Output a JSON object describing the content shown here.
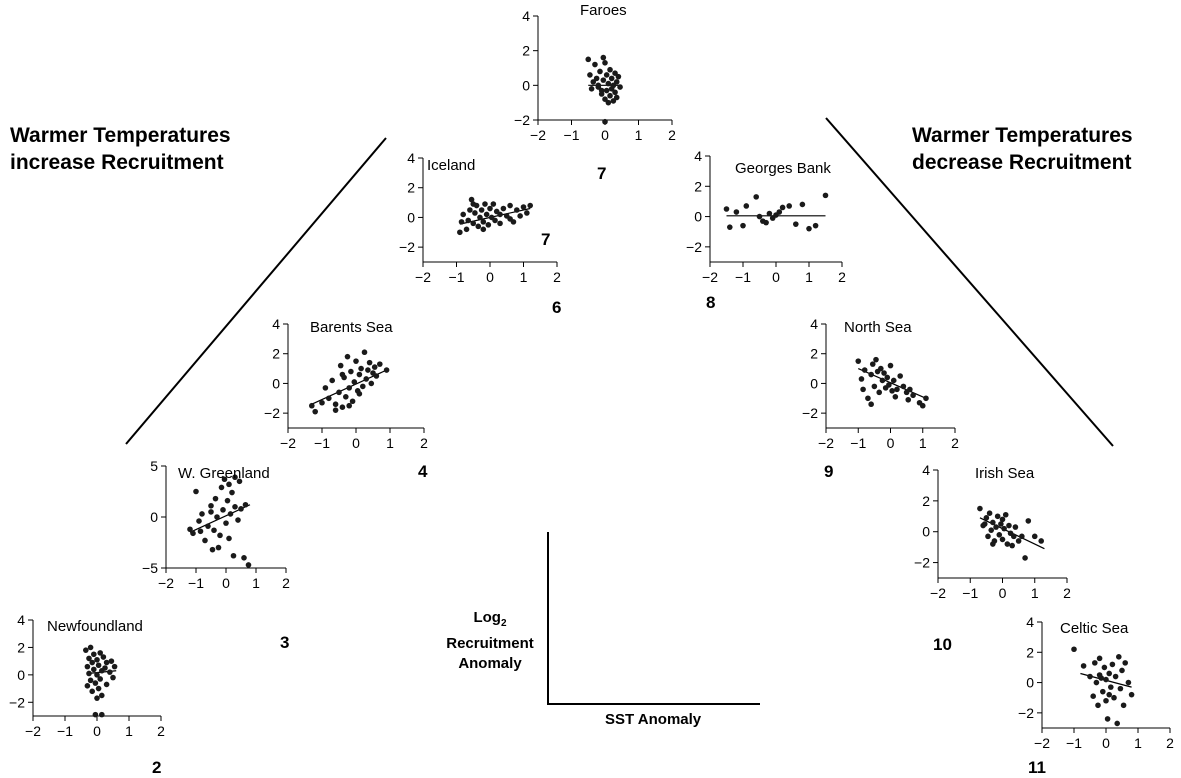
{
  "headings": {
    "left": [
      "Warmer Temperatures",
      "increase Recruitment"
    ],
    "right": [
      "Warmer Temperatures",
      "decrease Recruitment"
    ]
  },
  "legend": {
    "ylabel_prefix": "Log",
    "ylabel_sub": "2",
    "ylabel_line2": "Recruitment",
    "ylabel_line3": "Anomaly",
    "xlabel": "SST Anomaly"
  },
  "chart_data": [
    {
      "type": "scatter",
      "title": "Faroes",
      "rank": "7",
      "xlim": [
        -2,
        2
      ],
      "ylim": [
        -2,
        4
      ],
      "xticks": [
        -2,
        -1,
        0,
        1,
        2
      ],
      "yticks": [
        -2,
        0,
        2,
        4
      ],
      "trend": [
        [
          -0.5,
          0.0
        ],
        [
          0.5,
          0.0
        ]
      ],
      "points": [
        [
          -0.5,
          1.5
        ],
        [
          -0.45,
          0.6
        ],
        [
          -0.35,
          0.2
        ],
        [
          -0.3,
          1.2
        ],
        [
          -0.25,
          0.4
        ],
        [
          -0.2,
          -0.1
        ],
        [
          -0.15,
          0.8
        ],
        [
          -0.1,
          -0.5
        ],
        [
          -0.05,
          1.6
        ],
        [
          -0.05,
          0.3
        ],
        [
          0.0,
          1.3
        ],
        [
          0.0,
          -0.8
        ],
        [
          0.05,
          0.6
        ],
        [
          0.05,
          -0.3
        ],
        [
          0.1,
          0.1
        ],
        [
          0.1,
          -1.0
        ],
        [
          0.15,
          0.9
        ],
        [
          0.15,
          -0.6
        ],
        [
          0.2,
          0.4
        ],
        [
          0.2,
          -0.2
        ],
        [
          0.25,
          -0.9
        ],
        [
          0.3,
          0.7
        ],
        [
          0.3,
          -0.4
        ],
        [
          0.35,
          0.2
        ],
        [
          0.4,
          0.5
        ],
        [
          0.45,
          -0.1
        ],
        [
          -0.4,
          -0.2
        ],
        [
          -0.2,
          0.0
        ],
        [
          0.0,
          -2.1
        ],
        [
          0.25,
          0.0
        ],
        [
          -0.1,
          -0.3
        ],
        [
          0.35,
          -0.7
        ]
      ]
    },
    {
      "type": "scatter",
      "title": "Iceland",
      "rank": "6",
      "extra_label": "7",
      "xlim": [
        -2,
        2
      ],
      "ylim": [
        -3,
        4
      ],
      "xticks": [
        -2,
        -1,
        0,
        1,
        2
      ],
      "yticks": [
        -2,
        0,
        2,
        4
      ],
      "trend": [
        [
          -0.9,
          -0.45
        ],
        [
          1.2,
          0.6
        ]
      ],
      "points": [
        [
          -0.9,
          -1.0
        ],
        [
          -0.85,
          -0.3
        ],
        [
          -0.8,
          0.2
        ],
        [
          -0.7,
          -0.8
        ],
        [
          -0.65,
          -0.2
        ],
        [
          -0.6,
          0.5
        ],
        [
          -0.55,
          1.2
        ],
        [
          -0.5,
          -0.4
        ],
        [
          -0.45,
          0.3
        ],
        [
          -0.4,
          0.8
        ],
        [
          -0.35,
          -0.6
        ],
        [
          -0.3,
          0.0
        ],
        [
          -0.25,
          0.5
        ],
        [
          -0.2,
          -0.3
        ],
        [
          -0.15,
          0.9
        ],
        [
          -0.1,
          0.2
        ],
        [
          -0.05,
          -0.5
        ],
        [
          0.0,
          0.6
        ],
        [
          0.05,
          0.0
        ],
        [
          0.1,
          0.9
        ],
        [
          0.15,
          -0.2
        ],
        [
          0.2,
          0.4
        ],
        [
          0.3,
          -0.4
        ],
        [
          0.4,
          0.6
        ],
        [
          0.5,
          0.1
        ],
        [
          0.6,
          0.8
        ],
        [
          0.7,
          -0.3
        ],
        [
          0.8,
          0.5
        ],
        [
          0.9,
          0.1
        ],
        [
          1.0,
          0.7
        ],
        [
          1.1,
          0.3
        ],
        [
          1.2,
          0.8
        ],
        [
          -0.5,
          0.9
        ],
        [
          -0.2,
          -0.8
        ],
        [
          0.3,
          0.2
        ],
        [
          0.6,
          -0.1
        ]
      ]
    },
    {
      "type": "scatter",
      "title": "Georges Bank",
      "rank": "8",
      "xlim": [
        -2,
        2
      ],
      "ylim": [
        -3,
        4
      ],
      "xticks": [
        -2,
        -1,
        0,
        1,
        2
      ],
      "yticks": [
        -2,
        0,
        2,
        4
      ],
      "trend": [
        [
          -1.5,
          0.05
        ],
        [
          1.5,
          0.05
        ]
      ],
      "points": [
        [
          -1.5,
          0.5
        ],
        [
          -1.4,
          -0.7
        ],
        [
          -1.2,
          0.3
        ],
        [
          -1.0,
          -0.6
        ],
        [
          -0.9,
          0.7
        ],
        [
          -0.6,
          1.3
        ],
        [
          -0.5,
          0.0
        ],
        [
          -0.4,
          -0.3
        ],
        [
          -0.2,
          0.2
        ],
        [
          -0.1,
          -0.1
        ],
        [
          0.1,
          0.3
        ],
        [
          0.2,
          0.6
        ],
        [
          0.4,
          0.7
        ],
        [
          0.6,
          -0.5
        ],
        [
          0.8,
          0.8
        ],
        [
          1.0,
          -0.8
        ],
        [
          1.2,
          -0.6
        ],
        [
          1.5,
          1.4
        ],
        [
          -0.3,
          -0.4
        ],
        [
          0.0,
          0.1
        ]
      ]
    },
    {
      "type": "scatter",
      "title": "Barents Sea",
      "rank": "4",
      "xlim": [
        -2,
        2
      ],
      "ylim": [
        -3,
        4
      ],
      "xticks": [
        -2,
        -1,
        0,
        1,
        2
      ],
      "yticks": [
        -2,
        0,
        2,
        4
      ],
      "trend": [
        [
          -1.3,
          -1.4
        ],
        [
          0.9,
          0.9
        ]
      ],
      "points": [
        [
          -1.3,
          -1.5
        ],
        [
          -1.2,
          -1.9
        ],
        [
          -1.0,
          -1.3
        ],
        [
          -0.9,
          -0.3
        ],
        [
          -0.8,
          -1.0
        ],
        [
          -0.7,
          0.2
        ],
        [
          -0.6,
          -1.4
        ],
        [
          -0.5,
          -0.6
        ],
        [
          -0.45,
          1.2
        ],
        [
          -0.4,
          -1.6
        ],
        [
          -0.35,
          0.4
        ],
        [
          -0.3,
          -0.9
        ],
        [
          -0.25,
          1.8
        ],
        [
          -0.2,
          -0.3
        ],
        [
          -0.15,
          0.8
        ],
        [
          -0.1,
          -1.2
        ],
        [
          -0.05,
          0.1
        ],
        [
          0.0,
          1.5
        ],
        [
          0.05,
          -0.5
        ],
        [
          0.1,
          0.6
        ],
        [
          0.15,
          1.0
        ],
        [
          0.2,
          -0.2
        ],
        [
          0.25,
          2.1
        ],
        [
          0.3,
          0.3
        ],
        [
          0.35,
          0.9
        ],
        [
          0.4,
          1.4
        ],
        [
          0.45,
          0.0
        ],
        [
          0.5,
          0.7
        ],
        [
          0.55,
          1.1
        ],
        [
          0.6,
          0.5
        ],
        [
          0.7,
          1.3
        ],
        [
          0.9,
          0.9
        ],
        [
          -0.6,
          -1.8
        ],
        [
          -0.2,
          -1.5
        ],
        [
          0.1,
          -0.7
        ],
        [
          -0.4,
          0.6
        ]
      ]
    },
    {
      "type": "scatter",
      "title": "North Sea",
      "rank": "9",
      "xlim": [
        -2,
        2
      ],
      "ylim": [
        -3,
        4
      ],
      "xticks": [
        -2,
        -1,
        0,
        1,
        2
      ],
      "yticks": [
        -2,
        0,
        2,
        4
      ],
      "trend": [
        [
          -1.0,
          1.0
        ],
        [
          1.1,
          -1.0
        ]
      ],
      "points": [
        [
          -1.0,
          1.5
        ],
        [
          -0.9,
          0.3
        ],
        [
          -0.85,
          -0.4
        ],
        [
          -0.8,
          0.9
        ],
        [
          -0.7,
          -1.0
        ],
        [
          -0.6,
          0.6
        ],
        [
          -0.55,
          1.3
        ],
        [
          -0.5,
          -0.2
        ],
        [
          -0.45,
          1.6
        ],
        [
          -0.4,
          0.8
        ],
        [
          -0.35,
          -0.6
        ],
        [
          -0.3,
          1.0
        ],
        [
          -0.25,
          0.2
        ],
        [
          -0.2,
          0.7
        ],
        [
          -0.15,
          -0.3
        ],
        [
          -0.1,
          0.4
        ],
        [
          -0.05,
          -0.1
        ],
        [
          0.0,
          1.2
        ],
        [
          0.05,
          -0.5
        ],
        [
          0.1,
          0.2
        ],
        [
          0.2,
          -0.4
        ],
        [
          0.3,
          0.5
        ],
        [
          0.4,
          -0.2
        ],
        [
          0.5,
          -0.6
        ],
        [
          0.55,
          -1.1
        ],
        [
          0.6,
          -0.4
        ],
        [
          0.7,
          -0.8
        ],
        [
          0.9,
          -1.3
        ],
        [
          1.0,
          -1.5
        ],
        [
          1.1,
          -1.0
        ],
        [
          -0.6,
          -1.4
        ],
        [
          0.15,
          -0.9
        ]
      ]
    },
    {
      "type": "scatter",
      "title": "W. Greenland",
      "rank": "3",
      "xlim": [
        -2,
        2
      ],
      "ylim": [
        -5,
        5
      ],
      "xticks": [
        -2,
        -1,
        0,
        1,
        2
      ],
      "yticks": [
        -5,
        0,
        5
      ],
      "trend": [
        [
          -1.2,
          -1.5
        ],
        [
          0.8,
          1.2
        ]
      ],
      "points": [
        [
          -1.2,
          -1.2
        ],
        [
          -1.1,
          -1.6
        ],
        [
          -1.0,
          2.5
        ],
        [
          -0.9,
          -0.4
        ],
        [
          -0.85,
          -1.4
        ],
        [
          -0.8,
          0.3
        ],
        [
          -0.7,
          -2.3
        ],
        [
          -0.6,
          -0.9
        ],
        [
          -0.5,
          0.5
        ],
        [
          -0.45,
          -3.2
        ],
        [
          -0.4,
          -1.3
        ],
        [
          -0.35,
          1.8
        ],
        [
          -0.3,
          0.0
        ],
        [
          -0.2,
          -1.8
        ],
        [
          -0.15,
          2.9
        ],
        [
          -0.1,
          0.7
        ],
        [
          -0.05,
          3.7
        ],
        [
          0.0,
          -0.6
        ],
        [
          0.05,
          1.6
        ],
        [
          0.1,
          3.2
        ],
        [
          0.15,
          0.3
        ],
        [
          0.2,
          2.4
        ],
        [
          0.25,
          -3.8
        ],
        [
          0.3,
          1.0
        ],
        [
          0.4,
          -0.3
        ],
        [
          0.45,
          3.5
        ],
        [
          0.5,
          0.8
        ],
        [
          0.6,
          -4.0
        ],
        [
          0.65,
          1.2
        ],
        [
          0.75,
          -4.7
        ],
        [
          -0.25,
          -3.0
        ],
        [
          0.1,
          -2.1
        ],
        [
          0.3,
          3.9
        ],
        [
          -0.5,
          1.1
        ]
      ]
    },
    {
      "type": "scatter",
      "title": "Irish Sea",
      "rank": "10",
      "xlim": [
        -2,
        2
      ],
      "ylim": [
        -3,
        4
      ],
      "xticks": [
        -2,
        -1,
        0,
        1,
        2
      ],
      "yticks": [
        -2,
        0,
        2,
        4
      ],
      "trend": [
        [
          -0.7,
          0.9
        ],
        [
          1.3,
          -1.1
        ]
      ],
      "points": [
        [
          -0.7,
          1.5
        ],
        [
          -0.6,
          0.4
        ],
        [
          -0.5,
          0.9
        ],
        [
          -0.45,
          -0.3
        ],
        [
          -0.4,
          1.2
        ],
        [
          -0.35,
          0.1
        ],
        [
          -0.3,
          0.6
        ],
        [
          -0.25,
          -0.6
        ],
        [
          -0.2,
          0.3
        ],
        [
          -0.15,
          1.0
        ],
        [
          -0.1,
          -0.2
        ],
        [
          -0.05,
          0.5
        ],
        [
          0.0,
          -0.5
        ],
        [
          0.05,
          0.2
        ],
        [
          0.1,
          1.1
        ],
        [
          0.15,
          -0.8
        ],
        [
          0.2,
          0.4
        ],
        [
          0.25,
          -0.1
        ],
        [
          0.3,
          -0.9
        ],
        [
          0.4,
          0.3
        ],
        [
          0.5,
          -0.6
        ],
        [
          0.6,
          -0.3
        ],
        [
          0.7,
          -1.7
        ],
        [
          0.8,
          0.7
        ],
        [
          1.0,
          -0.3
        ],
        [
          1.2,
          -0.6
        ],
        [
          -0.3,
          -0.8
        ],
        [
          0.35,
          -0.3
        ],
        [
          0.0,
          0.8
        ],
        [
          -0.55,
          0.5
        ]
      ]
    },
    {
      "type": "scatter",
      "title": "Newfoundland",
      "rank": "2",
      "xlim": [
        -2,
        2
      ],
      "ylim": [
        -3,
        4
      ],
      "xticks": [
        -2,
        -1,
        0,
        1,
        2
      ],
      "yticks": [
        -2,
        0,
        2,
        4
      ],
      "trend": [
        [
          -0.3,
          0.1
        ],
        [
          0.6,
          0.3
        ]
      ],
      "points": [
        [
          -0.35,
          1.8
        ],
        [
          -0.3,
          0.6
        ],
        [
          -0.3,
          -0.8
        ],
        [
          -0.25,
          1.2
        ],
        [
          -0.25,
          0.1
        ],
        [
          -0.2,
          -0.4
        ],
        [
          -0.2,
          2.0
        ],
        [
          -0.15,
          0.9
        ],
        [
          -0.15,
          -1.2
        ],
        [
          -0.1,
          0.4
        ],
        [
          -0.1,
          1.5
        ],
        [
          -0.05,
          -0.6
        ],
        [
          0.0,
          1.1
        ],
        [
          0.0,
          0.0
        ],
        [
          0.05,
          -1.0
        ],
        [
          0.05,
          0.7
        ],
        [
          0.1,
          1.6
        ],
        [
          0.1,
          -0.3
        ],
        [
          0.15,
          0.3
        ],
        [
          0.15,
          -1.5
        ],
        [
          0.2,
          1.3
        ],
        [
          0.25,
          0.5
        ],
        [
          0.3,
          -0.7
        ],
        [
          0.3,
          0.9
        ],
        [
          0.4,
          0.2
        ],
        [
          0.45,
          1.0
        ],
        [
          0.5,
          -0.2
        ],
        [
          0.55,
          0.6
        ],
        [
          -0.05,
          -2.9
        ],
        [
          0.15,
          -2.9
        ],
        [
          0.0,
          -1.7
        ]
      ]
    },
    {
      "type": "scatter",
      "title": "Celtic Sea",
      "rank": "11",
      "xlim": [
        -2,
        2
      ],
      "ylim": [
        -3,
        4
      ],
      "xticks": [
        -2,
        -1,
        0,
        1,
        2
      ],
      "yticks": [
        -2,
        0,
        2,
        4
      ],
      "trend": [
        [
          -0.8,
          0.6
        ],
        [
          0.8,
          -0.3
        ]
      ],
      "points": [
        [
          -1.0,
          2.2
        ],
        [
          -0.7,
          1.1
        ],
        [
          -0.5,
          0.4
        ],
        [
          -0.4,
          -0.9
        ],
        [
          -0.35,
          1.3
        ],
        [
          -0.3,
          0.0
        ],
        [
          -0.25,
          -1.5
        ],
        [
          -0.2,
          1.6
        ],
        [
          -0.15,
          0.3
        ],
        [
          -0.1,
          -0.6
        ],
        [
          -0.05,
          1.0
        ],
        [
          0.0,
          -1.2
        ],
        [
          0.0,
          0.2
        ],
        [
          0.05,
          -2.4
        ],
        [
          0.1,
          0.6
        ],
        [
          0.15,
          -0.3
        ],
        [
          0.2,
          1.2
        ],
        [
          0.25,
          -1.0
        ],
        [
          0.3,
          0.4
        ],
        [
          0.35,
          -2.7
        ],
        [
          0.4,
          1.7
        ],
        [
          0.45,
          -0.4
        ],
        [
          0.5,
          0.8
        ],
        [
          0.55,
          -1.5
        ],
        [
          0.6,
          1.3
        ],
        [
          0.7,
          0.0
        ],
        [
          0.8,
          -0.8
        ],
        [
          -0.2,
          0.5
        ],
        [
          0.1,
          -0.8
        ]
      ]
    }
  ]
}
